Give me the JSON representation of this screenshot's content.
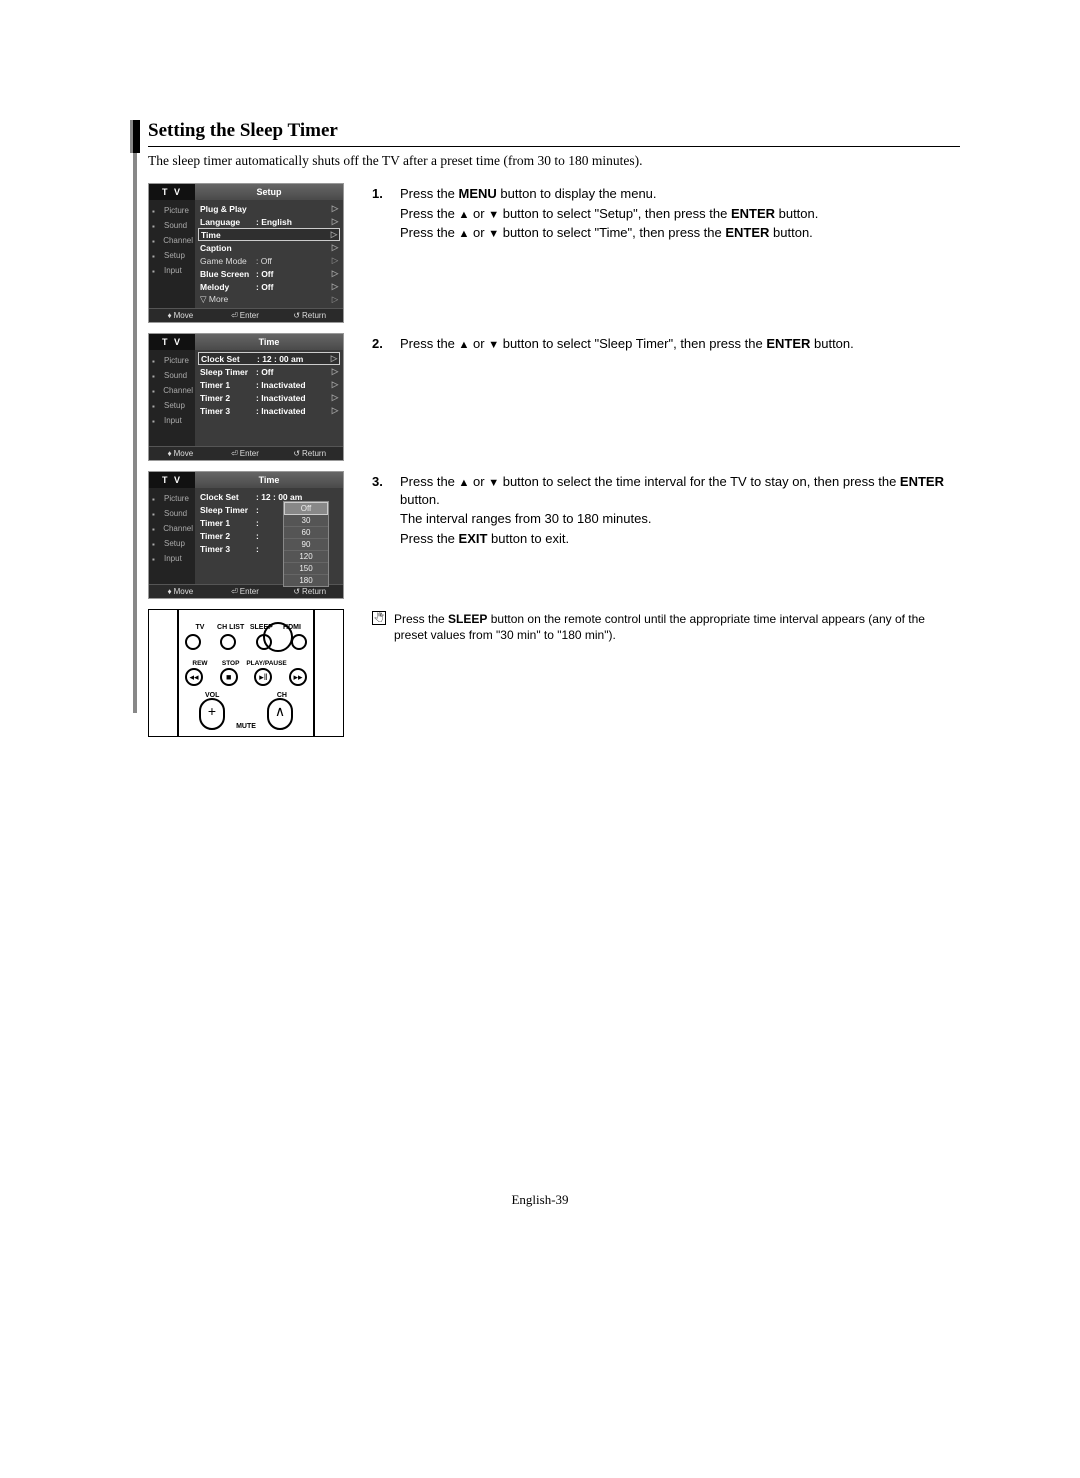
{
  "title": "Setting the Sleep Timer",
  "intro": "The sleep timer automatically shuts off the TV after a preset time (from 30 to 180 minutes).",
  "footer": "English-39",
  "side_tabs": [
    "Picture",
    "Sound",
    "Channel",
    "Setup",
    "Input"
  ],
  "osd_footer": {
    "move": "Move",
    "enter": "Enter",
    "return": "Return"
  },
  "osd1": {
    "head_left": "T V",
    "head_right": "Setup",
    "rows": [
      {
        "label": "Plug & Play",
        "value": "",
        "bold": true
      },
      {
        "label": "Language",
        "value": ": English",
        "bold": true
      },
      {
        "label": "Time",
        "value": "",
        "bold": true,
        "sel": true
      },
      {
        "label": "Caption",
        "value": "",
        "bold": true
      },
      {
        "label": "Game Mode",
        "value": ": Off",
        "bold": false
      },
      {
        "label": "Blue Screen",
        "value": ": Off",
        "bold": true
      },
      {
        "label": "Melody",
        "value": ": Off",
        "bold": true
      },
      {
        "label": "▽ More",
        "value": "",
        "bold": false
      }
    ]
  },
  "osd2": {
    "head_left": "T V",
    "head_right": "Time",
    "rows": [
      {
        "label": "Clock Set",
        "value": ": 12 : 00  am",
        "bold": true,
        "sel": true
      },
      {
        "label": "Sleep Timer",
        "value": ": Off",
        "bold": true
      },
      {
        "label": "Timer 1",
        "value": ": Inactivated",
        "bold": true
      },
      {
        "label": "Timer 2",
        "value": ": Inactivated",
        "bold": true
      },
      {
        "label": "Timer 3",
        "value": ": Inactivated",
        "bold": true
      }
    ]
  },
  "osd3": {
    "head_left": "T V",
    "head_right": "Time",
    "rows": [
      {
        "label": "Clock Set",
        "value": ": 12 : 00  am",
        "bold": true
      },
      {
        "label": "Sleep Timer",
        "value": ":",
        "bold": true
      },
      {
        "label": "Timer 1",
        "value": ":",
        "bold": true
      },
      {
        "label": "Timer 2",
        "value": ":",
        "bold": true
      },
      {
        "label": "Timer 3",
        "value": ":",
        "bold": true
      }
    ],
    "dropdown": [
      "Off",
      "30",
      "60",
      "90",
      "120",
      "150",
      "180"
    ]
  },
  "step1": {
    "num": "1.",
    "lines": [
      "Press the <b>MENU</b> button to display the menu.",
      "Press the ▲ or ▼ button to select \"Setup\", then press the <b>ENTER</b> button.",
      "Press the ▲ or ▼ button to select \"Time\", then press the <b>ENTER</b> button."
    ]
  },
  "step2": {
    "num": "2.",
    "lines": [
      "Press the ▲ or ▼ button to select \"Sleep Timer\", then press the <b>ENTER</b> button."
    ]
  },
  "step3": {
    "num": "3.",
    "lines": [
      "Press the ▲ or ▼ button to select the time interval for the TV to stay on, then press the <b>ENTER</b> button.",
      "The interval ranges from 30 to 180 minutes.",
      "Press the <b>EXIT</b> button to exit."
    ]
  },
  "remote": {
    "row1": [
      "TV",
      "CH LIST",
      "SLEEP",
      "HDMI"
    ],
    "row2": [
      "REW",
      "STOP",
      "PLAY/PAUSE",
      ""
    ],
    "vol": "VOL",
    "mute": "MUTE",
    "ch": "CH"
  },
  "tip": "Press the <b>SLEEP</b> button on the remote control until the appropriate time interval appears (any of the preset values from \"30 min\" to \"180 min\").",
  "colors": {
    "osd_bg": "#3a3a3a",
    "osd_side": "#232323",
    "osd_head_left": "#111111",
    "osd_head_right": "#5a5a5a",
    "osd_foot": "#2a2a2a",
    "page_bg": "#ffffff"
  }
}
